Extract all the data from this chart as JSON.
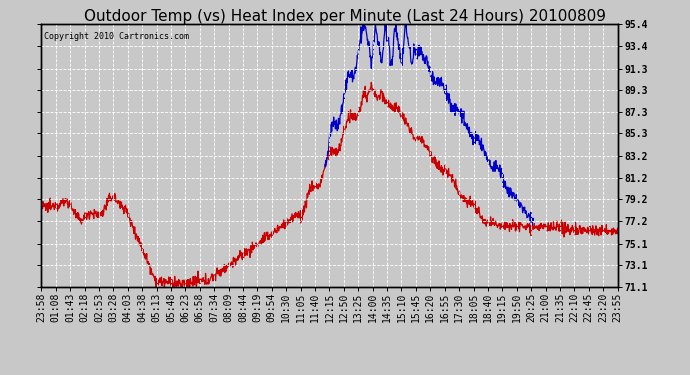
{
  "title": "Outdoor Temp (vs) Heat Index per Minute (Last 24 Hours) 20100809",
  "copyright": "Copyright 2010 Cartronics.com",
  "yticks": [
    71.1,
    73.1,
    75.1,
    77.2,
    79.2,
    81.2,
    83.2,
    85.3,
    87.3,
    89.3,
    91.3,
    93.4,
    95.4
  ],
  "xtick_labels": [
    "23:58",
    "01:08",
    "01:43",
    "02:18",
    "02:53",
    "03:28",
    "04:03",
    "04:38",
    "05:13",
    "05:48",
    "06:23",
    "06:58",
    "07:34",
    "08:09",
    "08:44",
    "09:19",
    "09:54",
    "10:30",
    "11:05",
    "11:40",
    "12:15",
    "12:50",
    "13:25",
    "14:00",
    "14:35",
    "15:10",
    "15:45",
    "16:20",
    "16:55",
    "17:30",
    "18:05",
    "18:40",
    "19:15",
    "19:50",
    "20:25",
    "21:00",
    "21:35",
    "22:10",
    "22:45",
    "23:20",
    "23:55"
  ],
  "ymin": 71.1,
  "ymax": 95.4,
  "background_color": "#c8c8c8",
  "plot_bg_color": "#c8c8c8",
  "red_color": "#cc0000",
  "blue_color": "#0000cc",
  "title_fontsize": 11,
  "tick_fontsize": 7,
  "grid_color": "#ffffff",
  "n_points": 1440
}
